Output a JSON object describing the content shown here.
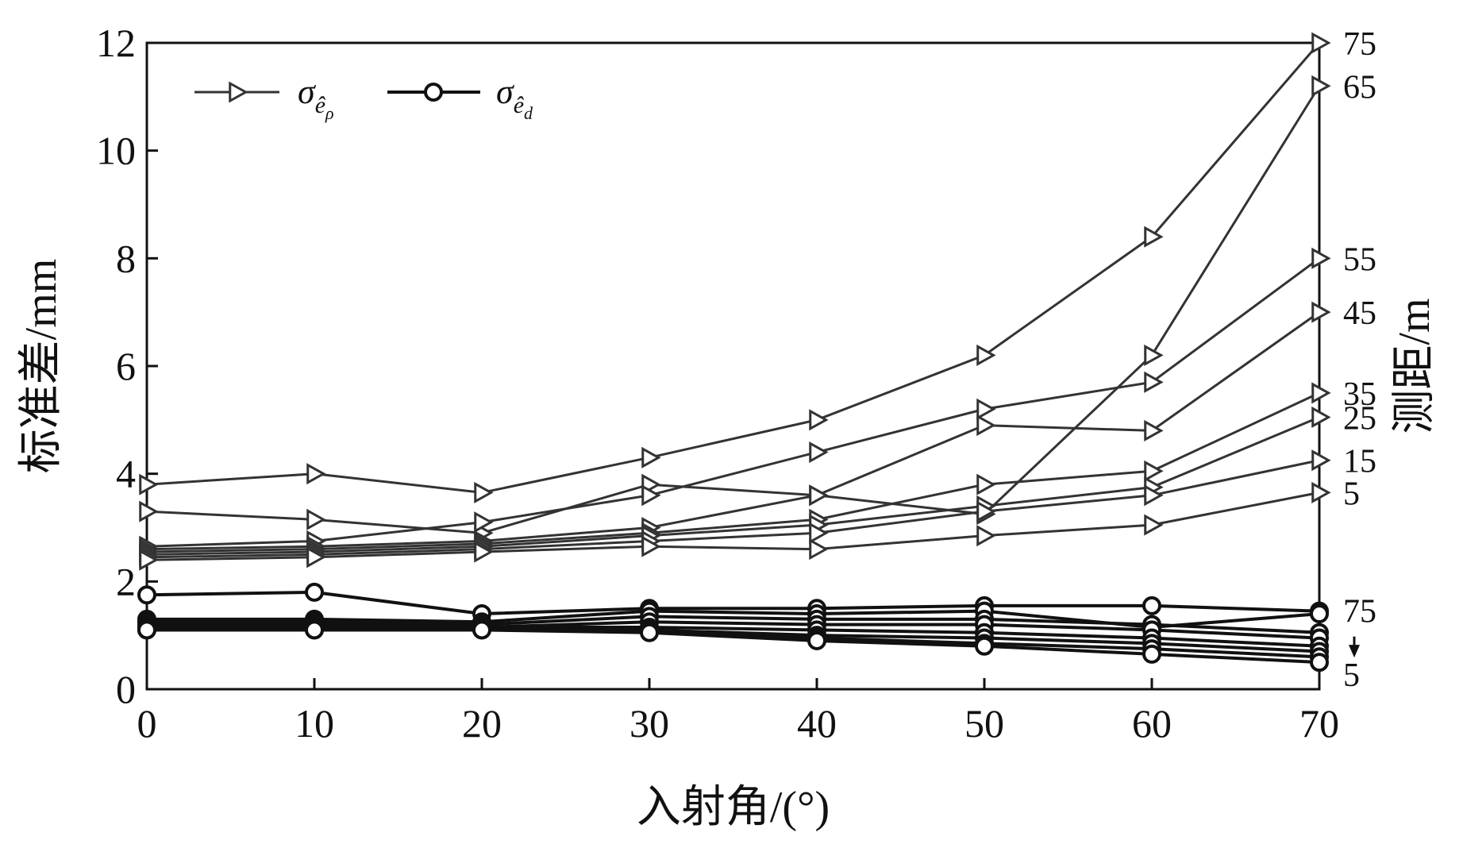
{
  "chart_data": {
    "type": "line",
    "title": "",
    "xlabel": "入射角/(°)",
    "ylabel": "标准差/mm",
    "y2label": "测距/m",
    "xlim": [
      0,
      70
    ],
    "ylim": [
      0,
      12
    ],
    "xticks": [
      0,
      10,
      20,
      30,
      40,
      50,
      60,
      70
    ],
    "yticks": [
      0,
      2,
      4,
      6,
      8,
      10,
      12
    ],
    "grid": false,
    "legend": {
      "position": "top-left",
      "entries": [
        {
          "marker": "triangle",
          "label": "σ",
          "sub": "ê",
          "subsub": "ρ"
        },
        {
          "marker": "circle",
          "label": "σ",
          "sub": "ê",
          "subsub": "d"
        }
      ]
    },
    "x": [
      0,
      10,
      20,
      30,
      40,
      50,
      60,
      70
    ],
    "series_rho": [
      {
        "range": "75",
        "values": [
          3.8,
          4.0,
          3.65,
          4.3,
          5.0,
          6.2,
          8.4,
          12.0
        ]
      },
      {
        "range": "65",
        "values": [
          3.3,
          3.15,
          2.9,
          3.8,
          3.6,
          3.25,
          6.2,
          11.2
        ]
      },
      {
        "range": "55",
        "values": [
          2.65,
          2.75,
          3.1,
          3.6,
          4.4,
          5.2,
          5.7,
          8.0
        ]
      },
      {
        "range": "45",
        "values": [
          2.6,
          2.65,
          2.75,
          3.0,
          3.6,
          4.9,
          4.8,
          7.0
        ]
      },
      {
        "range": "35",
        "values": [
          2.55,
          2.6,
          2.7,
          2.9,
          3.15,
          3.8,
          4.05,
          5.5
        ]
      },
      {
        "range": "25",
        "values": [
          2.5,
          2.55,
          2.65,
          2.85,
          3.05,
          3.4,
          3.75,
          5.05
        ]
      },
      {
        "range": "15",
        "values": [
          2.45,
          2.5,
          2.6,
          2.75,
          2.9,
          3.3,
          3.6,
          4.25
        ]
      },
      {
        "range": "5",
        "values": [
          2.4,
          2.45,
          2.55,
          2.65,
          2.6,
          2.85,
          3.05,
          3.65
        ]
      }
    ],
    "series_d": [
      {
        "range": "75",
        "values": [
          1.75,
          1.8,
          1.4,
          1.5,
          1.5,
          1.55,
          1.55,
          1.45
        ]
      },
      {
        "range": "65",
        "values": [
          1.3,
          1.3,
          1.25,
          1.45,
          1.4,
          1.45,
          1.15,
          1.4
        ]
      },
      {
        "range": "55",
        "values": [
          1.25,
          1.25,
          1.2,
          1.35,
          1.3,
          1.3,
          1.2,
          1.05
        ]
      },
      {
        "range": "45",
        "values": [
          1.2,
          1.2,
          1.15,
          1.25,
          1.2,
          1.2,
          1.1,
          0.95
        ]
      },
      {
        "range": "35",
        "values": [
          1.2,
          1.2,
          1.15,
          1.15,
          1.1,
          1.05,
          0.95,
          0.8
        ]
      },
      {
        "range": "25",
        "values": [
          1.15,
          1.15,
          1.15,
          1.1,
          1.0,
          0.95,
          0.85,
          0.7
        ]
      },
      {
        "range": "15",
        "values": [
          1.1,
          1.1,
          1.1,
          1.1,
          0.95,
          0.85,
          0.75,
          0.6
        ]
      },
      {
        "range": "5",
        "values": [
          1.1,
          1.1,
          1.1,
          1.05,
          0.9,
          0.8,
          0.65,
          0.5
        ]
      }
    ],
    "circle_range_labels": {
      "top": "75",
      "bottom": "5"
    }
  }
}
